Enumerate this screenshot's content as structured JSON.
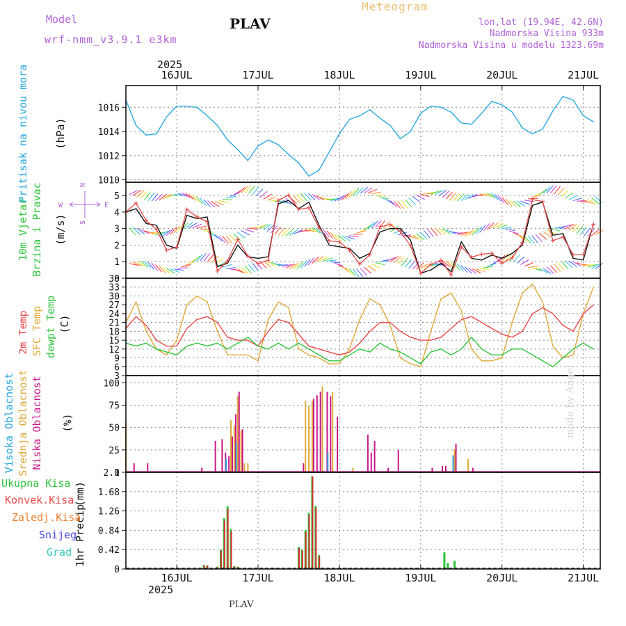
{
  "header": {
    "model_label": "Model",
    "model_name": "wrf-nmm_v3.9.1 e3km",
    "station_title": "PLAV",
    "product": "Meteogram",
    "lonlat": "lon,lat (19.94E, 42.6N)",
    "altitude": "Nadmorska Visina 933m",
    "model_altitude": "Nadmorska Visina u modelu 1323.69m",
    "year_top": "2025",
    "year_bottom": "2025",
    "footer_station": "PLAV",
    "watermark": "made by Angel"
  },
  "colors": {
    "pressure": "#2aa8e0",
    "t2m": "#e84848",
    "sfc": "#e0a838",
    "dew": "#2cc43a",
    "high": "#2aa8e0",
    "mid": "#e0a838",
    "low": "#c8188a",
    "total_precip": "#2cc43a",
    "conv_precip": "#d83030",
    "ice": "#f08030",
    "snow": "#4848e0",
    "hail": "#38c8b8"
  },
  "chart_data": [
    {
      "type": "line",
      "id": "pressure",
      "ylabel_name": "Pritisak na nivou mora",
      "ylabel_unit": "(hPa)",
      "ylim": [
        1009.8,
        1017.8
      ],
      "yticks": [
        "1010",
        "1012",
        "1014",
        "1016"
      ],
      "x_days": [
        "16JUL",
        "17JUL",
        "18JUL",
        "19JUL",
        "20JUL",
        "21JUL"
      ],
      "x_hours": [
        0,
        3,
        6,
        9,
        12,
        15,
        18,
        21,
        24,
        27,
        30,
        33,
        36,
        39,
        42,
        45,
        48,
        51,
        54,
        57,
        60,
        63,
        66,
        69,
        72,
        75,
        78,
        81,
        84,
        87,
        90,
        93,
        96,
        99,
        102,
        105,
        108,
        111,
        114,
        117,
        120,
        123,
        126,
        129,
        132,
        135,
        138
      ],
      "series": [
        {
          "name": "Pritisak",
          "values": [
            1016.6,
            1014.5,
            1013.7,
            1013.8,
            1015.2,
            1016.1,
            1016.1,
            1016.0,
            1015.3,
            1014.5,
            1013.3,
            1012.5,
            1011.6,
            1012.8,
            1013.3,
            1012.9,
            1012.1,
            1011.4,
            1010.3,
            1010.8,
            1012.3,
            1013.8,
            1015.0,
            1015.3,
            1015.8,
            1015.1,
            1014.5,
            1013.4,
            1014.0,
            1015.5,
            1016.1,
            1016.0,
            1015.6,
            1014.7,
            1014.6,
            1015.5,
            1016.5,
            1016.2,
            1015.6,
            1014.3,
            1013.8,
            1014.2,
            1015.7,
            1016.9,
            1016.6,
            1015.3,
            1014.8
          ]
        }
      ]
    },
    {
      "type": "line",
      "id": "wind",
      "ylabel_name": "10m Vjetar",
      "ylabel_name2": "Brzina i Pravac",
      "ylabel_unit": "(m/s)",
      "compass_n": "N",
      "compass_s": "S",
      "compass_w": "W",
      "compass_e": "E",
      "ylim": [
        0,
        5.8
      ],
      "yticks": [
        "0",
        "1",
        "2",
        "3",
        "4",
        "5"
      ],
      "series": [
        {
          "name": "Brzina",
          "values": [
            4.0,
            4.2,
            3.3,
            3.2,
            2.0,
            1.8,
            3.8,
            3.6,
            3.7,
            0.7,
            0.9,
            2.0,
            1.3,
            1.2,
            1.3,
            4.5,
            4.7,
            4.2,
            4.6,
            3.2,
            2.0,
            1.9,
            1.8,
            1.2,
            1.5,
            2.8,
            3.0,
            3.0,
            2.3,
            0.3,
            0.5,
            0.9,
            0.4,
            2.2,
            1.2,
            1.1,
            1.4,
            1.2,
            1.5,
            2.0,
            4.4,
            4.6,
            2.6,
            2.7,
            1.2,
            1.1,
            3.3
          ]
        }
      ]
    },
    {
      "type": "line",
      "id": "temperature",
      "ylabel_name": "2m Temp",
      "ylabel_name2": "SFC Temp",
      "ylabel_name3": "dewpt Temp",
      "ylabel_unit": "(C)",
      "ylim": [
        3,
        36
      ],
      "yticks": [
        "3",
        "6",
        "9",
        "12",
        "15",
        "18",
        "21",
        "24",
        "27",
        "30",
        "33",
        "36"
      ],
      "series": [
        {
          "name": "2m Temp",
          "values": [
            19,
            23,
            20,
            15,
            13,
            13,
            19,
            22,
            23,
            21,
            16,
            15,
            15,
            13,
            18,
            22,
            21,
            17,
            13,
            12,
            11,
            10,
            11,
            14,
            18,
            21,
            21,
            18,
            16,
            15,
            15,
            16,
            19,
            22,
            23,
            21,
            19,
            17,
            16,
            18,
            24,
            26,
            24,
            20,
            18,
            24,
            27
          ]
        },
        {
          "name": "SFC Temp",
          "values": [
            21,
            28,
            18,
            12,
            10,
            15,
            27,
            30,
            28,
            18,
            10,
            10,
            10,
            8,
            22,
            28,
            26,
            12,
            10,
            9,
            7,
            7,
            12,
            22,
            29,
            27,
            20,
            9,
            7,
            6,
            18,
            29,
            31,
            25,
            12,
            8,
            8,
            9,
            21,
            31,
            34,
            28,
            13,
            9,
            10,
            24,
            33
          ]
        },
        {
          "name": "dewpt Temp",
          "values": [
            14,
            13,
            14,
            12,
            11,
            10,
            13,
            14,
            13,
            14,
            12,
            14,
            16,
            13,
            12,
            14,
            12,
            14,
            12,
            10,
            8,
            8,
            10,
            12,
            11,
            14,
            12,
            11,
            9,
            7,
            11,
            12,
            10,
            12,
            16,
            12,
            10,
            10,
            12,
            12,
            10,
            8,
            6,
            9,
            12,
            14,
            12
          ]
        }
      ]
    },
    {
      "type": "bar",
      "id": "clouds",
      "ylabel_name": "Visoka Oblacnost",
      "ylabel_name2": "Srednja Oblacnost",
      "ylabel_name3": "Niska Oblacnost",
      "ylabel_unit": "(%)",
      "ylim": [
        0,
        108
      ],
      "yticks": [
        "0",
        "25",
        "50",
        "75",
        "100"
      ],
      "bar_hours": [
        0,
        2,
        6,
        22,
        26,
        28,
        29,
        30,
        31,
        32,
        33,
        34,
        35,
        36,
        39,
        52,
        53,
        54,
        55,
        56,
        57,
        58,
        59,
        60,
        61,
        62,
        67,
        71,
        72,
        73,
        77,
        80,
        90,
        93,
        94,
        97,
        101,
        102
      ],
      "series": [
        {
          "name": "Visoka Oblacnost",
          "values": [
            0,
            0,
            0,
            0,
            0,
            0,
            0,
            15,
            0,
            0,
            33,
            0,
            0,
            0,
            0,
            0,
            0,
            0,
            0,
            0,
            0,
            0,
            0,
            22,
            0,
            0,
            0,
            0,
            0,
            0,
            0,
            0,
            0,
            0,
            0,
            19,
            0,
            0
          ]
        },
        {
          "name": "Srednja Oblacnost",
          "values": [
            55,
            0,
            0,
            0,
            0,
            0,
            0,
            0,
            58,
            52,
            85,
            47,
            10,
            10,
            0,
            0,
            80,
            74,
            80,
            0,
            0,
            96,
            0,
            0,
            90,
            0,
            5,
            0,
            0,
            0,
            0,
            0,
            0,
            0,
            0,
            26,
            15,
            0
          ]
        },
        {
          "name": "Niska Oblacnost",
          "values": [
            0,
            10,
            10,
            5,
            35,
            37,
            22,
            18,
            40,
            65,
            90,
            48,
            0,
            0,
            0,
            10,
            0,
            0,
            82,
            86,
            90,
            0,
            90,
            85,
            0,
            62,
            0,
            42,
            22,
            35,
            5,
            25,
            5,
            7,
            7,
            32,
            0,
            5
          ]
        }
      ]
    },
    {
      "type": "bar",
      "id": "precip",
      "ylabel_name": "1hr Precip",
      "ylabel_unit": "(mm)",
      "ylim": [
        0,
        2.1
      ],
      "yticks": [
        "0",
        "0.42",
        "0.84",
        "1.26",
        "1.68",
        "2.1"
      ],
      "legend": [
        "Ukupna Kisa",
        "Konvek.Kisa",
        "Zaledj.Kisa",
        "Snijeg",
        "Grad"
      ],
      "bar_hours": [
        0,
        23,
        24,
        27,
        28,
        29,
        30,
        31,
        32,
        33,
        51,
        52,
        53,
        54,
        55,
        56,
        57,
        58,
        94,
        95,
        97
      ],
      "series": [
        {
          "name": "Ukupna Kisa",
          "values": [
            0.03,
            0.09,
            0.08,
            0.05,
            0.42,
            1.1,
            1.36,
            0.87,
            0.06,
            0.05,
            0.48,
            0.42,
            0.84,
            1.22,
            2.01,
            1.37,
            0.3,
            0.03,
            0.36,
            0.13,
            0.18
          ]
        },
        {
          "name": "Konvek.Kisa",
          "values": [
            0.02,
            0.08,
            0.07,
            0.04,
            0.4,
            1.05,
            1.3,
            0.82,
            0.05,
            0.04,
            0.45,
            0.4,
            0.8,
            1.18,
            2.01,
            1.33,
            0.28,
            0.02,
            0.0,
            0.0,
            0.0
          ]
        }
      ]
    }
  ]
}
